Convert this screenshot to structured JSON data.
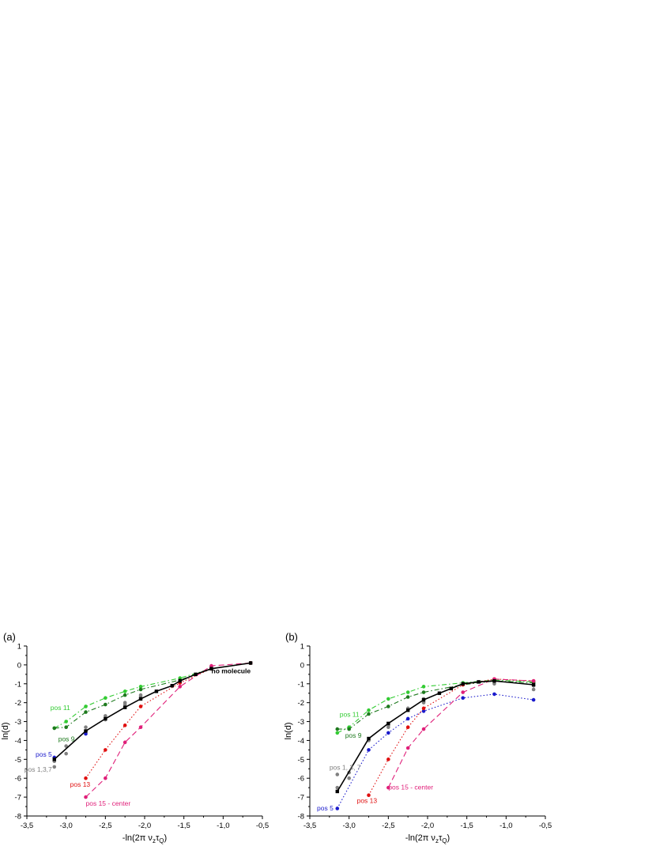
{
  "chart_data": [
    {
      "panel_label": "(a)",
      "type": "line",
      "xlabel_prefix": "-ln(2π ν",
      "xlabel_sub1": "z",
      "xlabel_mid": "τ",
      "xlabel_sub2": "Q",
      "xlabel_suffix": ")",
      "ylabel": "ln(d)",
      "xlim": [
        -3.5,
        -0.5
      ],
      "ylim": [
        -8,
        1
      ],
      "xticks": [
        "-3,5",
        "-3,0",
        "-2,5",
        "-2,0",
        "-1,5",
        "-1,0",
        "-0,5"
      ],
      "yticks": [
        "1",
        "0",
        "-1",
        "-2",
        "-3",
        "-4",
        "-5",
        "-6",
        "-7",
        "-8"
      ],
      "series": [
        {
          "name": "pos 1,3,7",
          "color": "#808080",
          "style": "points",
          "x": [
            -3.15,
            -3.15,
            -3.0,
            -3.0,
            -2.75,
            -2.75,
            -2.5,
            -2.5,
            -2.25,
            -2.25,
            -2.05,
            -2.05,
            -1.55,
            -1.15
          ],
          "y": [
            -5.4,
            -5.1,
            -4.3,
            -4.7,
            -3.3,
            -3.5,
            -2.7,
            -2.9,
            -2.0,
            -2.1,
            -1.6,
            -1.7,
            -0.8,
            -0.1
          ]
        },
        {
          "name": "pos 11",
          "color": "#33cc33",
          "style": "dashdot",
          "x": [
            -3.15,
            -3.0,
            -2.75,
            -2.5,
            -2.25,
            -2.05,
            -1.55,
            -1.15,
            -0.65
          ],
          "y": [
            -3.35,
            -3.0,
            -2.2,
            -1.75,
            -1.4,
            -1.15,
            -0.7,
            -0.2,
            0.1
          ]
        },
        {
          "name": "pos 9",
          "color": "#1e7a1e",
          "style": "dashdot",
          "x": [
            -3.15,
            -3.0,
            -2.75,
            -2.5,
            -2.25,
            -2.05,
            -1.55,
            -1.15,
            -0.65
          ],
          "y": [
            -3.35,
            -3.3,
            -2.5,
            -2.1,
            -1.6,
            -1.3,
            -0.8,
            -0.2,
            0.1
          ]
        },
        {
          "name": "pos 5",
          "color": "#1a1acc",
          "style": "points",
          "x": [
            -3.15,
            -2.75
          ],
          "y": [
            -4.9,
            -3.65
          ]
        },
        {
          "name": "pos 13",
          "color": "#e01010",
          "style": "dotted",
          "x": [
            -2.75,
            -2.5,
            -2.25,
            -2.05,
            -1.55,
            -1.15,
            -0.65
          ],
          "y": [
            -6.0,
            -4.5,
            -3.2,
            -2.2,
            -0.95,
            -0.2,
            0.1
          ]
        },
        {
          "name": "pos 15 - center",
          "color": "#e0207a",
          "style": "dashed",
          "x": [
            -2.75,
            -2.5,
            -2.25,
            -2.05,
            -1.55,
            -1.15,
            -0.65
          ],
          "y": [
            -7.0,
            -6.0,
            -4.1,
            -3.3,
            -1.15,
            -0.05,
            0.1
          ]
        },
        {
          "name": "no molecule",
          "color": "#000000",
          "style": "solid",
          "x": [
            -3.15,
            -2.75,
            -2.5,
            -2.25,
            -2.05,
            -1.85,
            -1.65,
            -1.55,
            -1.35,
            -1.15,
            -0.65
          ],
          "y": [
            -5.0,
            -3.5,
            -2.85,
            -2.25,
            -1.8,
            -1.4,
            -1.1,
            -0.85,
            -0.5,
            -0.2,
            0.1
          ]
        }
      ],
      "labels": [
        {
          "text": "pos 11",
          "series": "pos 11",
          "x": -3.2,
          "y": -2.4,
          "anchor": "start"
        },
        {
          "text": "pos 9",
          "series": "pos 9",
          "x": -3.1,
          "y": -4.05,
          "anchor": "start"
        },
        {
          "text": "pos 5",
          "series": "pos 5",
          "x": -3.18,
          "y": -4.85,
          "anchor": "end"
        },
        {
          "text": "pos 1,3,7",
          "series": "pos 1,3,7",
          "x": -3.18,
          "y": -5.65,
          "anchor": "end"
        },
        {
          "text": "pos 13",
          "series": "pos 13",
          "x": -2.95,
          "y": -6.45,
          "anchor": "start"
        },
        {
          "text": "pos 15 - center",
          "series": "pos 15 - center",
          "x": -2.75,
          "y": -7.45,
          "anchor": "start"
        },
        {
          "text": "no molecule",
          "series": "no molecule",
          "x": -0.65,
          "y": -0.45,
          "anchor": "end",
          "bold": true
        }
      ]
    },
    {
      "panel_label": "(b)",
      "type": "line",
      "xlabel_prefix": "-ln(2π ν",
      "xlabel_sub1": "z",
      "xlabel_mid": "τ",
      "xlabel_sub2": "Q",
      "xlabel_suffix": ")",
      "ylabel": "ln(d)",
      "xlim": [
        -3.5,
        -0.5
      ],
      "ylim": [
        -8,
        1
      ],
      "xticks": [
        "-3,5",
        "-3,0",
        "-2,5",
        "-2,0",
        "-1,5",
        "-1,0",
        "-0,5"
      ],
      "yticks": [
        "1",
        "0",
        "-1",
        "-2",
        "-3",
        "-4",
        "-5",
        "-6",
        "-7",
        "-8"
      ],
      "series": [
        {
          "name": "pos 1, 3, 7",
          "color": "#808080",
          "style": "points",
          "x": [
            -3.15,
            -3.15,
            -3.0,
            -3.0,
            -2.75,
            -2.5,
            -2.5,
            -2.25,
            -2.05,
            -2.05,
            -1.55,
            -1.15,
            -1.15,
            -0.65,
            -0.65
          ],
          "y": [
            -5.8,
            -6.5,
            -5.7,
            -6.0,
            -4.0,
            -3.2,
            -3.3,
            -2.3,
            -1.8,
            -2.0,
            -1.0,
            -0.8,
            -1.0,
            -1.1,
            -1.3
          ]
        },
        {
          "name": "pos 11",
          "color": "#33cc33",
          "style": "dashdot",
          "x": [
            -3.15,
            -3.0,
            -2.75,
            -2.5,
            -2.25,
            -2.05,
            -1.55,
            -1.15,
            -0.65
          ],
          "y": [
            -3.6,
            -3.3,
            -2.4,
            -1.8,
            -1.45,
            -1.15,
            -0.95,
            -0.8,
            -0.9
          ]
        },
        {
          "name": "pos 9",
          "color": "#1e7a1e",
          "style": "dashdot",
          "x": [
            -3.15,
            -3.0,
            -2.75,
            -2.5,
            -2.25,
            -2.05,
            -1.55,
            -1.15,
            -0.65
          ],
          "y": [
            -3.4,
            -3.4,
            -2.6,
            -2.2,
            -1.7,
            -1.45,
            -1.05,
            -0.85,
            -0.95
          ]
        },
        {
          "name": "pos 5",
          "color": "#1a1acc",
          "style": "dotted",
          "x": [
            -3.15,
            -2.75,
            -2.5,
            -2.25,
            -2.05,
            -1.55,
            -1.15,
            -0.65
          ],
          "y": [
            -7.6,
            -4.5,
            -3.6,
            -2.85,
            -2.45,
            -1.75,
            -1.55,
            -1.85
          ]
        },
        {
          "name": "pos 13",
          "color": "#e01010",
          "style": "dotted",
          "x": [
            -2.75,
            -2.5,
            -2.25,
            -2.05,
            -1.55,
            -1.15,
            -0.65
          ],
          "y": [
            -6.9,
            -5.0,
            -3.3,
            -2.3,
            -1.05,
            -0.75,
            -0.85
          ]
        },
        {
          "name": "pos 15 - center",
          "color": "#e0207a",
          "style": "dashed",
          "x": [
            -2.5,
            -2.25,
            -2.05,
            -1.55,
            -1.15,
            -0.65
          ],
          "y": [
            -6.5,
            -4.4,
            -3.4,
            -1.45,
            -0.75,
            -0.85
          ]
        },
        {
          "name": "no molecule",
          "color": "#000000",
          "style": "solid",
          "x": [
            -3.15,
            -2.75,
            -2.5,
            -2.25,
            -2.05,
            -1.85,
            -1.7,
            -1.55,
            -1.35,
            -1.15,
            -0.65
          ],
          "y": [
            -6.7,
            -3.9,
            -3.1,
            -2.4,
            -1.85,
            -1.5,
            -1.25,
            -1.0,
            -0.9,
            -0.85,
            -1.05
          ]
        }
      ],
      "labels": [
        {
          "text": "pos 11",
          "series": "pos 11",
          "x": -3.12,
          "y": -2.75,
          "anchor": "start"
        },
        {
          "text": "pos 9",
          "series": "pos 9",
          "x": -3.05,
          "y": -3.85,
          "anchor": "start"
        },
        {
          "text": "pos 1, 3, 7",
          "series": "pos 1, 3, 7",
          "x": -3.25,
          "y": -5.55,
          "anchor": "start"
        },
        {
          "text": "pos 5",
          "series": "pos 5",
          "x": -3.2,
          "y": -7.7,
          "anchor": "end"
        },
        {
          "text": "pos 13",
          "series": "pos 13",
          "x": -2.9,
          "y": -7.3,
          "anchor": "start"
        },
        {
          "text": "pos 15 - center",
          "series": "pos 15 - center",
          "x": -2.5,
          "y": -6.6,
          "anchor": "start"
        }
      ]
    }
  ]
}
